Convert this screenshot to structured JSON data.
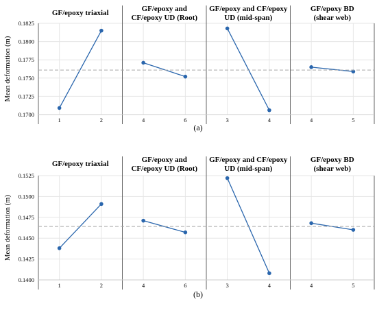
{
  "chart_data": [
    {
      "type": "line",
      "caption": "(a)",
      "ylabel": "Mean deformation (m)",
      "ylim": [
        0.17,
        0.1825
      ],
      "yticks": [
        "0.1700",
        "0.1725",
        "0.1750",
        "0.1775",
        "0.1800",
        "0.1825"
      ],
      "grid": true,
      "mean_line": 0.1761,
      "panels": [
        {
          "title": [
            "GF/epoxy triaxial"
          ],
          "x": [
            "1",
            "2"
          ],
          "values": [
            0.1709,
            0.1815
          ]
        },
        {
          "title": [
            "GF/epoxy and",
            "CF/epoxy UD (Root)"
          ],
          "x": [
            "4",
            "6"
          ],
          "values": [
            0.1771,
            0.1752
          ]
        },
        {
          "title": [
            "GF/epoxy and CF/epoxy",
            "UD (mid-span)"
          ],
          "x": [
            "3",
            "4"
          ],
          "values": [
            0.1818,
            0.1706
          ]
        },
        {
          "title": [
            "GF/epoxy BD",
            "(shear web)"
          ],
          "x": [
            "4",
            "5"
          ],
          "values": [
            0.1765,
            0.1759
          ]
        }
      ]
    },
    {
      "type": "line",
      "caption": "(b)",
      "ylabel": "Mean deformation (m)",
      "ylim": [
        0.14,
        0.1525
      ],
      "yticks": [
        "0.1400",
        "0.1425",
        "0.1450",
        "0.1475",
        "0.1500",
        "0.1525"
      ],
      "grid": true,
      "mean_line": 0.1464,
      "panels": [
        {
          "title": [
            "GF/epoxy triaxial"
          ],
          "x": [
            "1",
            "2"
          ],
          "values": [
            0.1438,
            0.1491
          ]
        },
        {
          "title": [
            "GF/epoxy and",
            "CF/epoxy UD (Root)"
          ],
          "x": [
            "4",
            "6"
          ],
          "values": [
            0.1471,
            0.1457
          ]
        },
        {
          "title": [
            "GF/epoxy and CF/epoxy",
            "UD (mid-span)"
          ],
          "x": [
            "3",
            "4"
          ],
          "values": [
            0.1522,
            0.1408
          ]
        },
        {
          "title": [
            "GF/epoxy BD",
            "(shear web)"
          ],
          "x": [
            "4",
            "5"
          ],
          "values": [
            0.1468,
            0.146
          ]
        }
      ]
    }
  ],
  "colors": {
    "series": "#2a66ad",
    "mean_line": "#a9a9a9",
    "grid": "#e6e6e6",
    "separator": "#666666"
  }
}
